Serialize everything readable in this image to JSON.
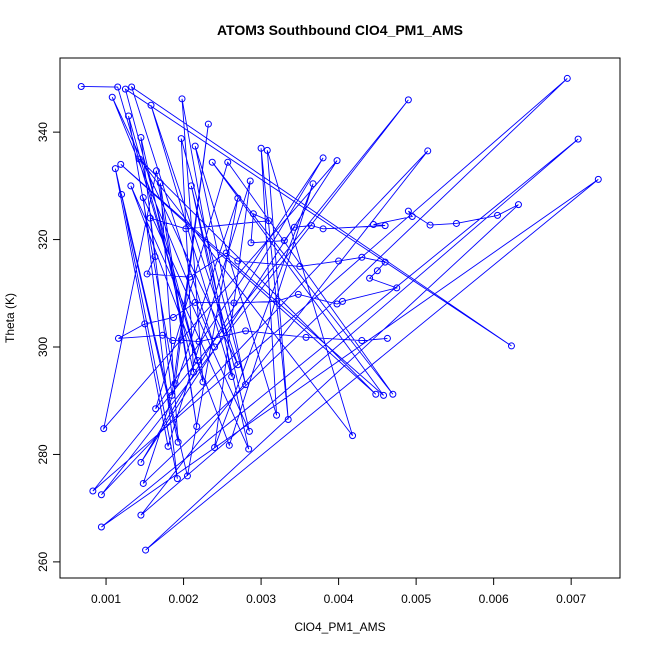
{
  "chart_data": {
    "type": "line",
    "title": "ATOM3 Southbound ClO4_PM1_AMS",
    "xlabel": "ClO4_PM1_AMS",
    "ylabel": "Theta (K)",
    "xlim": [
      0.000406,
      0.00763
    ],
    "ylim": [
      257.0,
      353.8
    ],
    "xticks": [
      0.001,
      0.002,
      0.003,
      0.004,
      0.005,
      0.006,
      0.007
    ],
    "yticks": [
      260,
      280,
      300,
      320,
      340
    ],
    "marker": "circle",
    "color": "#0000ff",
    "x": [
      0.00068,
      0.00115,
      0.00218,
      0.00125,
      0.00623,
      0.00133,
      0.0024,
      0.00108,
      0.0027,
      0.00158,
      0.00262,
      0.00198,
      0.00225,
      0.00129,
      0.00189,
      0.00232,
      0.00185,
      0.00145,
      0.00213,
      0.00197,
      0.0028,
      0.00215,
      0.0032,
      0.003,
      0.00335,
      0.00308,
      0.00418,
      0.00143,
      0.00448,
      0.00119,
      0.00458,
      0.00237,
      0.0047,
      0.00257,
      0.00164,
      0.0038,
      0.00145,
      0.00398,
      0.00097,
      0.00165,
      0.00217,
      0.0017,
      0.00193,
      0.00112,
      0.0018,
      0.00286,
      0.0024,
      0.00367,
      0.00259,
      0.00132,
      0.00284,
      0.0021,
      0.00285,
      0.00148,
      0.00192,
      0.0012,
      0.00205,
      0.0027,
      0.00148,
      0.00695,
      0.00083,
      0.0049,
      0.00094,
      0.00515,
      0.00145,
      0.00709,
      0.00094,
      0.00735,
      0.00151,
      0.00632,
      0.00605,
      0.00552,
      0.00518,
      0.0049,
      0.00495,
      0.00445,
      0.0046,
      0.0038,
      0.00365,
      0.00343,
      0.0033,
      0.00287,
      0.0029,
      0.0031,
      0.00203,
      0.00157,
      0.00163,
      0.00153,
      0.00208,
      0.00255,
      0.0027,
      0.0035,
      0.004,
      0.0043,
      0.0046,
      0.0045,
      0.0044,
      0.00475,
      0.00405,
      0.00398,
      0.00348,
      0.0032,
      0.00265,
      0.00215,
      0.00187,
      0.0015,
      0.00116,
      0.00173,
      0.00186,
      0.00197,
      0.0022,
      0.0028,
      0.00358,
      0.0043,
      0.00463
    ],
    "series": [
      {
        "color": "#0000ff",
        "values": [
          348.5,
          348.4,
          297.5,
          348.0,
          300.2,
          348.4,
          300.0,
          346.5,
          296.7,
          345.0,
          294.5,
          346.2,
          293.5,
          343.0,
          293.2,
          341.5,
          291.0,
          339.0,
          295.3,
          338.8,
          293.0,
          337.4,
          287.3,
          337.0,
          286.5,
          336.6,
          283.5,
          335.0,
          291.2,
          334.0,
          291.0,
          334.4,
          291.2,
          334.4,
          288.5,
          335.2,
          278.5,
          334.7,
          284.8,
          332.8,
          285.2,
          330.5,
          282.3,
          333.2,
          281.5,
          330.9,
          281.3,
          330.4,
          281.7,
          330.0,
          281.0,
          330.0,
          284.3,
          327.8,
          275.5,
          328.4,
          276.0,
          327.7,
          274.6,
          350.0,
          273.2,
          346.0,
          272.5,
          336.5,
          268.7,
          338.7,
          266.5,
          331.2,
          262.2,
          326.5,
          324.5,
          323.0,
          322.7,
          325.3,
          324.3,
          322.8,
          322.6,
          322.0,
          322.6,
          322.3,
          319.8,
          319.4,
          324.8,
          323.5,
          322.0,
          324.0,
          316.8,
          313.6,
          313.0,
          317.5,
          316.0,
          315.0,
          316.0,
          316.7,
          315.8,
          314.2,
          312.8,
          311.0,
          308.5,
          308.0,
          309.8,
          308.5,
          308.2,
          308.3,
          305.5,
          304.3,
          301.6,
          302.2,
          301.2,
          301.3,
          301.0,
          303.0,
          301.8,
          301.2,
          301.6
        ]
      }
    ]
  }
}
